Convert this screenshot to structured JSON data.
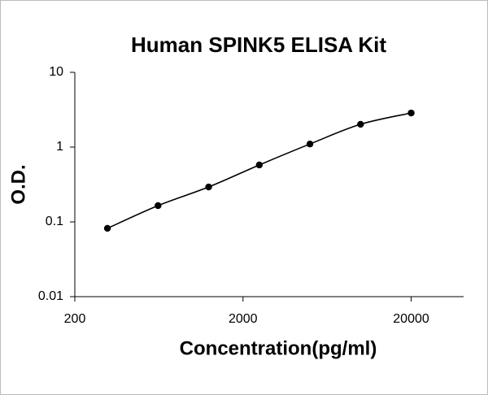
{
  "chart_data": {
    "type": "scatter",
    "line": true,
    "smooth": true,
    "title": "Human SPINK5 ELISA Kit",
    "xlabel": "Concentration(pg/ml)",
    "ylabel": "O.D.",
    "x": [
      312.5,
      625,
      1250,
      2500,
      5000,
      10000,
      20000
    ],
    "values": [
      0.082,
      0.165,
      0.293,
      0.577,
      1.1,
      2.02,
      2.86
    ],
    "color": "#000000",
    "xscale": "log",
    "yscale": "log",
    "xlim": [
      200,
      41000
    ],
    "ylim": [
      0.01,
      10
    ],
    "xticks": [
      200,
      2000,
      20000
    ],
    "yticks": [
      0.01,
      0.1,
      1,
      10
    ]
  }
}
